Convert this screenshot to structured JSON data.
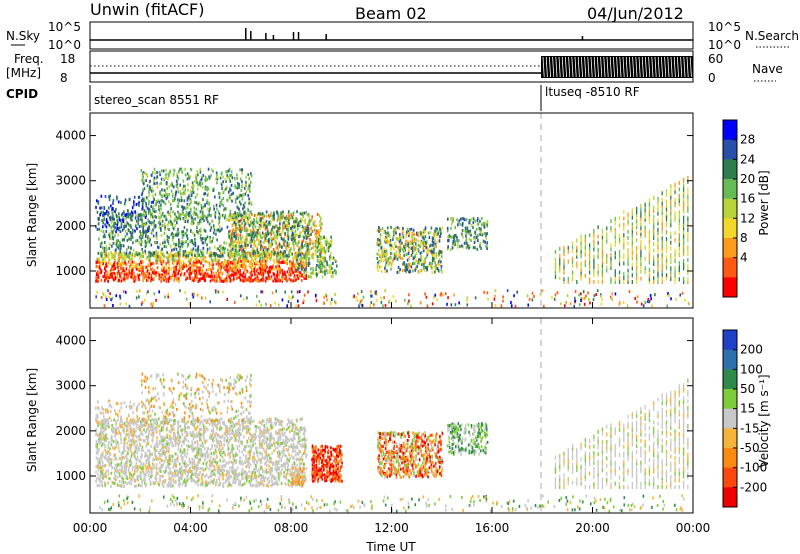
{
  "header": {
    "station": "Unwin (fitACF)",
    "beam": "Beam 02",
    "date": "04/Jun/2012"
  },
  "status_panels": {
    "nsky_label": "N.Sky",
    "nsky_ticks": [
      "10^5",
      "10^0"
    ],
    "nsearch_label": "N.Search",
    "nsearch_ticks": [
      "10^5",
      "10^0"
    ],
    "freq_label": "Freq.",
    "freq_unit": "[MHz]",
    "freq_ticks": [
      "18",
      "8"
    ],
    "nave_label": "Nave",
    "nave_ticks": [
      "60",
      "0"
    ],
    "cpid_label": "CPID",
    "cpid_segments": [
      {
        "label": "stereo_scan 8551 RF",
        "start_hour": 0
      },
      {
        "label": "ltuseq -8510 RF",
        "start_hour": 18
      }
    ]
  },
  "chart_data": [
    {
      "type": "heatmap",
      "name": "power",
      "xlabel": "",
      "ylabel": "Slant Range [km]",
      "xlim": [
        0,
        24
      ],
      "ylim": [
        180,
        4500
      ],
      "yticks": [
        1000,
        2000,
        3000,
        4000
      ],
      "colorbar": {
        "label": "Power [dB]",
        "ticks": [
          "28",
          "24",
          "20",
          "16",
          "12",
          "8",
          "4"
        ],
        "colors": [
          "#0000ff",
          "#2850a8",
          "#2e7d4f",
          "#66bb55",
          "#b7d23a",
          "#f3d72b",
          "#ff9a1b",
          "#ff5a14",
          "#ff0000"
        ]
      }
    },
    {
      "type": "heatmap",
      "name": "velocity",
      "xlabel": "Time UT",
      "ylabel": "Slant Range [km]",
      "xlim": [
        0,
        24
      ],
      "ylim": [
        180,
        4500
      ],
      "yticks": [
        1000,
        2000,
        3000,
        4000
      ],
      "xticks": [
        "00:00",
        "04:00",
        "08:00",
        "12:00",
        "16:00",
        "20:00",
        "00:00"
      ],
      "colorbar": {
        "label": "Velocity [m s⁻¹]",
        "ticks": [
          "200",
          "100",
          "50",
          "15",
          "-15",
          "-50",
          "-100",
          "-200"
        ],
        "colors": [
          "#2040c8",
          "#2e6fae",
          "#2e8a4a",
          "#7fcc3a",
          "#c8c8c8",
          "#f7b43a",
          "#ff8a10",
          "#ff4810",
          "#ee0000"
        ]
      }
    }
  ]
}
